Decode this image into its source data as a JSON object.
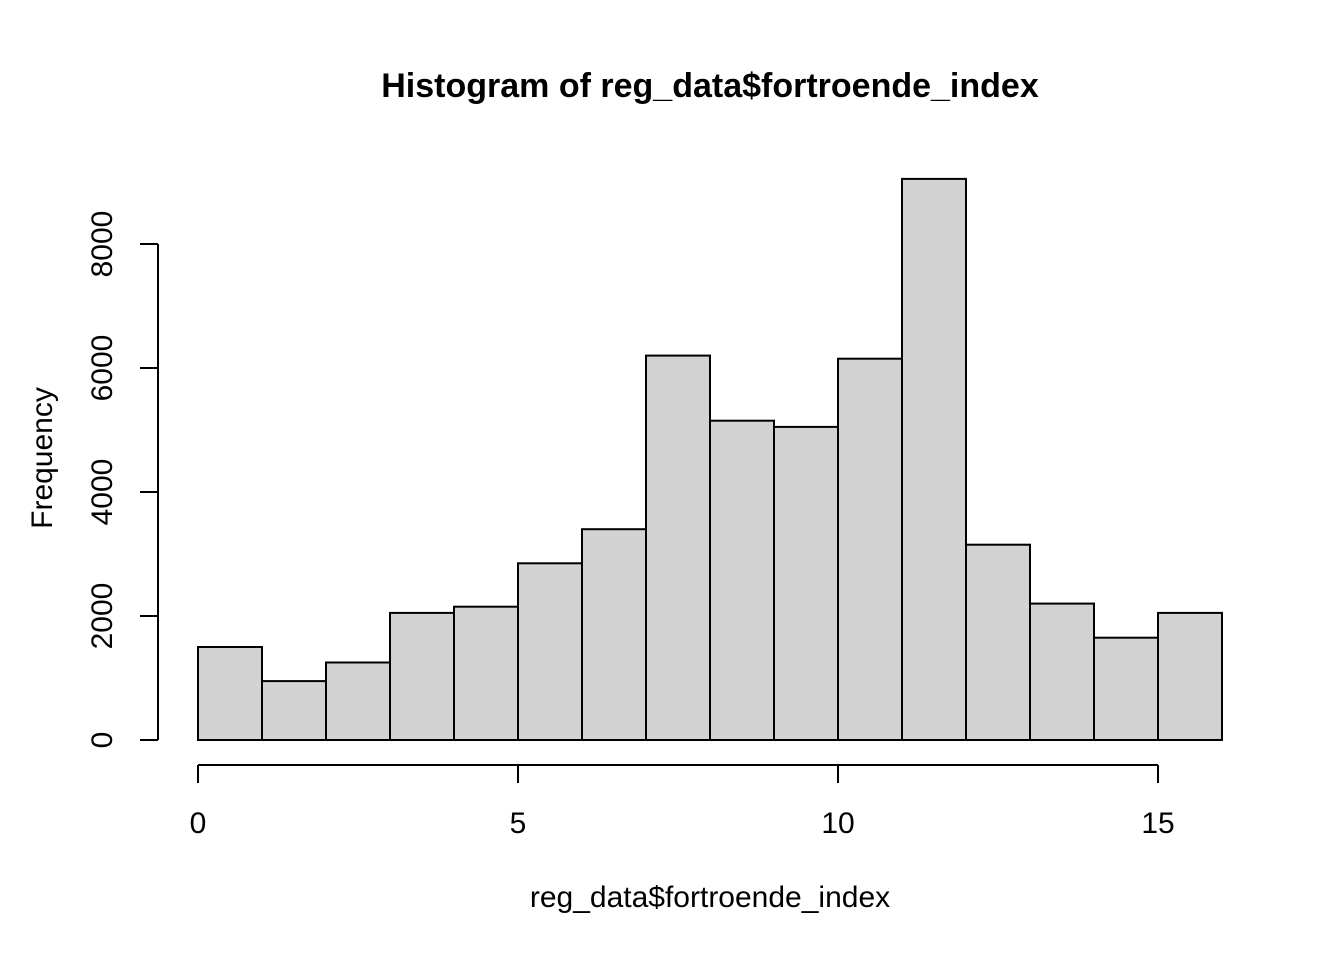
{
  "chart_data": {
    "type": "bar",
    "subtype": "histogram",
    "title": "Histogram of reg_data$fortroende_index",
    "xlabel": "reg_data$fortroende_index",
    "ylabel": "Frequency",
    "bin_edges": [
      0,
      1,
      2,
      3,
      4,
      5,
      6,
      7,
      8,
      9,
      10,
      11,
      12,
      13,
      14,
      15,
      16
    ],
    "counts": [
      1500,
      950,
      1250,
      2050,
      2150,
      2850,
      3400,
      6200,
      5150,
      5050,
      6150,
      9050,
      3150,
      2200,
      1650,
      2050
    ],
    "x_ticks": [
      0,
      5,
      10,
      15
    ],
    "y_ticks": [
      0,
      2000,
      4000,
      6000,
      8000
    ],
    "xlim": [
      0,
      16
    ],
    "ylim": [
      0,
      9050
    ],
    "grid": "off",
    "legend": "none",
    "colors": {
      "bar_fill": "#D3D3D3",
      "bar_stroke": "#000000",
      "axis_stroke": "#000000",
      "text": "#000000",
      "background": "#FFFFFF"
    }
  }
}
